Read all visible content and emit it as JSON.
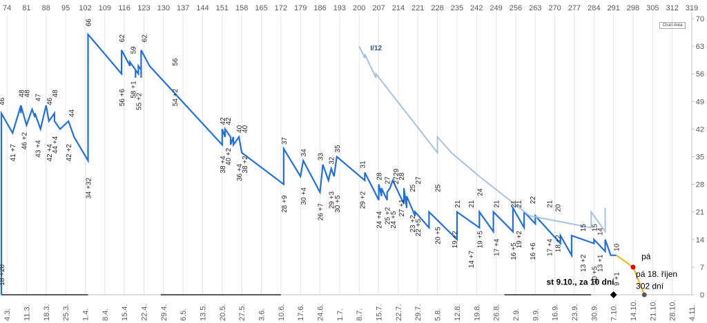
{
  "chart_data": {
    "type": "line",
    "top_axis": {
      "ticks": [
        74,
        81,
        88,
        95,
        102,
        109,
        116,
        123,
        130,
        137,
        144,
        151,
        158,
        165,
        172,
        179,
        186,
        193,
        200,
        207,
        214,
        221,
        228,
        235,
        242,
        249,
        256,
        263,
        270,
        277,
        284,
        291,
        298,
        305,
        312,
        319
      ],
      "range": [
        72,
        319
      ]
    },
    "bottom_axis": {
      "ticks": [
        "4.3.",
        "11.3.",
        "18.3.",
        "25.3.",
        "1.4.",
        "8.4.",
        "15.4.",
        "22.4.",
        "29.4.",
        "6.5.",
        "13.5.",
        "20.5.",
        "27.5.",
        "3.6.",
        "10.6.",
        "17.6.",
        "24.6.",
        "1.7.",
        "8.7.",
        "15.7.",
        "22.7.",
        "29.7.",
        "5.8.",
        "12.8.",
        "19.8.",
        "26.8.",
        "2.9.",
        "9.9.",
        "16.9.",
        "23.9.",
        "30.9.",
        "7.10.",
        "14.10.",
        "21.10.",
        "28.10.",
        "4.11."
      ],
      "range": [
        "2.3.",
        "4.11."
      ]
    },
    "y_axis": {
      "ticks": [
        0,
        7,
        14,
        21,
        28,
        35,
        42,
        49,
        56,
        63,
        70
      ],
      "ylim": [
        0,
        70
      ],
      "position": "right"
    },
    "grid": {
      "vertical": true,
      "horizontal": false
    },
    "series": [
      {
        "color": "#1f6fe0",
        "x": [
          72,
          72,
          72,
          76,
          79,
          79,
          79,
          81,
          83,
          84,
          84,
          86,
          88,
          89,
          91,
          91,
          91,
          93,
          96,
          98,
          103,
          103,
          115,
          115,
          118,
          118,
          120,
          120,
          120,
          121,
          121,
          122,
          122,
          122,
          125,
          125,
          151,
          151,
          152,
          152,
          154,
          154,
          155,
          155,
          157,
          158,
          173,
          173,
          179,
          180,
          186,
          187,
          189,
          190,
          191,
          191,
          192,
          202,
          202,
          207,
          207,
          208,
          208,
          210,
          210,
          211,
          211,
          212,
          216,
          216,
          217,
          217,
          220,
          220,
          225,
          225,
          235,
          235,
          243,
          243,
          248,
          248,
          255,
          255,
          259,
          259,
          263,
          263,
          272,
          272,
          276,
          276,
          284,
          284,
          288,
          288,
          290,
          290,
          292
        ],
        "y": [
          0,
          18,
          46,
          41,
          48,
          46,
          48,
          43,
          47,
          45,
          46,
          42,
          48,
          44,
          46,
          44,
          44,
          42,
          44,
          40,
          34,
          66,
          56,
          62,
          58,
          59,
          57,
          55,
          57,
          56,
          58,
          57,
          55,
          62,
          58,
          58,
          38,
          42,
          40,
          42,
          40,
          38,
          40,
          38,
          40,
          36,
          28,
          37,
          30,
          34,
          26,
          33,
          29,
          32,
          30,
          30,
          35,
          29,
          31,
          24,
          28,
          25,
          27,
          24,
          26,
          27,
          27,
          29,
          23,
          27,
          22,
          25,
          20,
          21,
          17,
          21,
          14,
          21,
          17,
          21,
          16,
          21,
          16,
          22,
          17,
          21,
          18,
          20,
          13,
          15,
          10,
          15,
          13,
          14,
          11,
          14,
          10,
          10,
          10
        ]
      },
      {
        "name": "I/12",
        "color": "#a9c1e0",
        "x": [
          200,
          202,
          202,
          206,
          206,
          228,
          228,
          233,
          233,
          243,
          243,
          261,
          261,
          283,
          283,
          288,
          288
        ],
        "y": [
          63,
          60,
          61,
          55,
          56,
          36,
          40,
          36,
          36,
          30,
          30,
          20,
          20,
          17,
          21,
          16,
          22
        ]
      },
      {
        "color": "#f5b400",
        "x": [
          292,
          298,
          302
        ],
        "y": [
          10,
          7,
          0
        ]
      }
    ],
    "point_labels": [
      {
        "text": "18 +28",
        "x": 72,
        "y": 5,
        "rotate": -90
      },
      {
        "text": "46",
        "x": 72,
        "y": 49,
        "rotate": -90
      },
      {
        "text": "41 +7",
        "x": 76,
        "y": 36,
        "rotate": -90
      },
      {
        "text": "48",
        "x": 79,
        "y": 51,
        "rotate": -90
      },
      {
        "text": "46 +2",
        "x": 80,
        "y": 39,
        "rotate": -90
      },
      {
        "text": "48",
        "x": 81,
        "y": 51,
        "rotate": -90
      },
      {
        "text": "43 +4",
        "x": 85,
        "y": 37,
        "rotate": -90
      },
      {
        "text": "47",
        "x": 85,
        "y": 50,
        "rotate": -90
      },
      {
        "text": "42 +4",
        "x": 89,
        "y": 36,
        "rotate": -90
      },
      {
        "text": "46",
        "x": 89,
        "y": 49,
        "rotate": -90
      },
      {
        "text": "44 +4",
        "x": 91,
        "y": 38,
        "rotate": -90
      },
      {
        "text": "48",
        "x": 91,
        "y": 51,
        "rotate": -90
      },
      {
        "text": "42 +2",
        "x": 96,
        "y": 36,
        "rotate": -90
      },
      {
        "text": "44",
        "x": 97,
        "y": 46,
        "rotate": -90
      },
      {
        "text": "34 +32",
        "x": 103,
        "y": 27,
        "rotate": -90
      },
      {
        "text": "66",
        "x": 103,
        "y": 69,
        "rotate": -90
      },
      {
        "text": "56 +6",
        "x": 115,
        "y": 50,
        "rotate": -90
      },
      {
        "text": "62",
        "x": 115,
        "y": 65,
        "rotate": -90
      },
      {
        "text": "58 +1",
        "x": 119,
        "y": 52,
        "rotate": -90
      },
      {
        "text": "59",
        "x": 119,
        "y": 62,
        "rotate": -90
      },
      {
        "text": "55 +2",
        "x": 121,
        "y": 49,
        "rotate": -90
      },
      {
        "text": "62",
        "x": 123,
        "y": 65,
        "rotate": -90
      },
      {
        "text": "54 +2",
        "x": 134,
        "y": 50,
        "rotate": -90
      },
      {
        "text": "56",
        "x": 134,
        "y": 59,
        "rotate": -90
      },
      {
        "text": "38 +4",
        "x": 151,
        "y": 33,
        "rotate": -90
      },
      {
        "text": "42",
        "x": 151,
        "y": 44,
        "rotate": -90
      },
      {
        "text": "40 +2",
        "x": 153,
        "y": 35,
        "rotate": -90
      },
      {
        "text": "42",
        "x": 153,
        "y": 44,
        "rotate": -90
      },
      {
        "text": "36 +4",
        "x": 157,
        "y": 31,
        "rotate": -90
      },
      {
        "text": "40",
        "x": 157,
        "y": 42,
        "rotate": -90
      },
      {
        "text": "38 +2",
        "x": 159,
        "y": 33,
        "rotate": -90
      },
      {
        "text": "40",
        "x": 159,
        "y": 42,
        "rotate": -90
      },
      {
        "text": "28 +9",
        "x": 173,
        "y": 23,
        "rotate": -90
      },
      {
        "text": "37",
        "x": 173,
        "y": 39,
        "rotate": -90
      },
      {
        "text": "30 +4",
        "x": 180,
        "y": 25,
        "rotate": -90
      },
      {
        "text": "34",
        "x": 180,
        "y": 36,
        "rotate": -90
      },
      {
        "text": "26 +7",
        "x": 186,
        "y": 21,
        "rotate": -90
      },
      {
        "text": "33",
        "x": 186,
        "y": 35,
        "rotate": -90
      },
      {
        "text": "29 +3",
        "x": 190,
        "y": 24,
        "rotate": -90
      },
      {
        "text": "32",
        "x": 190,
        "y": 34,
        "rotate": -90
      },
      {
        "text": "30 +5",
        "x": 192,
        "y": 23,
        "rotate": -90
      },
      {
        "text": "35",
        "x": 192,
        "y": 37,
        "rotate": -90
      },
      {
        "text": "29 +2",
        "x": 201,
        "y": 24,
        "rotate": -90
      },
      {
        "text": "31",
        "x": 201,
        "y": 33,
        "rotate": -90
      },
      {
        "text": "24 +4",
        "x": 207,
        "y": 19,
        "rotate": -90
      },
      {
        "text": "28",
        "x": 207,
        "y": 30,
        "rotate": -90
      },
      {
        "text": "25 +2",
        "x": 210,
        "y": 20,
        "rotate": -90
      },
      {
        "text": "27",
        "x": 210,
        "y": 29,
        "rotate": -90
      },
      {
        "text": "24 +5",
        "x": 212,
        "y": 19,
        "rotate": -90
      },
      {
        "text": "27",
        "x": 213,
        "y": 29,
        "rotate": -90
      },
      {
        "text": "29",
        "x": 213,
        "y": 31,
        "rotate": -90
      },
      {
        "text": "27 +1",
        "x": 215,
        "y": 22,
        "rotate": -90
      },
      {
        "text": "28",
        "x": 215,
        "y": 30,
        "rotate": -90
      },
      {
        "text": "23 +2",
        "x": 219,
        "y": 18,
        "rotate": -90
      },
      {
        "text": "25",
        "x": 219,
        "y": 27,
        "rotate": -90
      },
      {
        "text": "22 +5",
        "x": 221,
        "y": 17,
        "rotate": -90
      },
      {
        "text": "27",
        "x": 221,
        "y": 29,
        "rotate": -90
      },
      {
        "text": "20 +5",
        "x": 228,
        "y": 15,
        "rotate": -90
      },
      {
        "text": "25",
        "x": 228,
        "y": 27,
        "rotate": -90
      },
      {
        "text": "19 +2",
        "x": 234,
        "y": 14,
        "rotate": -90
      },
      {
        "text": "21",
        "x": 235,
        "y": 23,
        "rotate": -90
      },
      {
        "text": "14 +7",
        "x": 240,
        "y": 9,
        "rotate": -90
      },
      {
        "text": "21",
        "x": 240,
        "y": 23,
        "rotate": -90
      },
      {
        "text": "19 +5",
        "x": 243,
        "y": 14,
        "rotate": -90
      },
      {
        "text": "24",
        "x": 243,
        "y": 26,
        "rotate": -90
      },
      {
        "text": "17 +4",
        "x": 249,
        "y": 12,
        "rotate": -90
      },
      {
        "text": "21",
        "x": 249,
        "y": 23,
        "rotate": -90
      },
      {
        "text": "16 +5",
        "x": 255,
        "y": 11,
        "rotate": -90
      },
      {
        "text": "21",
        "x": 255,
        "y": 23,
        "rotate": -90
      },
      {
        "text": "19 +2",
        "x": 257,
        "y": 14,
        "rotate": -90
      },
      {
        "text": "21",
        "x": 257,
        "y": 23,
        "rotate": -90
      },
      {
        "text": "16 +6",
        "x": 262,
        "y": 11,
        "rotate": -90
      },
      {
        "text": "22",
        "x": 262,
        "y": 24,
        "rotate": -90
      },
      {
        "text": "17 +4",
        "x": 268,
        "y": 12,
        "rotate": -90
      },
      {
        "text": "21",
        "x": 268,
        "y": 23,
        "rotate": -90
      },
      {
        "text": "18 +2",
        "x": 271,
        "y": 13,
        "rotate": -90
      },
      {
        "text": "20",
        "x": 271,
        "y": 22,
        "rotate": -90
      },
      {
        "text": "13 +2",
        "x": 280,
        "y": 8,
        "rotate": -90
      },
      {
        "text": "15",
        "x": 280,
        "y": 17,
        "rotate": -90
      },
      {
        "text": "10 +5",
        "x": 284,
        "y": 5,
        "rotate": -90
      },
      {
        "text": "13 +1",
        "x": 286,
        "y": 8,
        "rotate": -90
      },
      {
        "text": "15",
        "x": 284,
        "y": 17,
        "rotate": -90
      },
      {
        "text": "14",
        "x": 286,
        "y": 16,
        "rotate": -90
      },
      {
        "text": "9 +1",
        "x": 292,
        "y": 4,
        "rotate": -90
      },
      {
        "text": "10",
        "x": 292,
        "y": 12,
        "rotate": -90
      }
    ],
    "series_labels": [
      {
        "text": "I/12",
        "x": 204,
        "y": 62
      }
    ],
    "annotations": [
      {
        "text": "st 9.10., za 10 dní",
        "x": 267,
        "y": 2.5,
        "bold": true
      },
      {
        "text": "pá",
        "x": 301,
        "y": 9
      },
      {
        "text": "pá 18. říjen",
        "x": 299,
        "y": 4.5
      },
      {
        "text": "302 dní",
        "x": 299,
        "y": 1.5
      }
    ],
    "markers": [
      {
        "shape": "diamond",
        "x": 291,
        "y": 0,
        "color": "#000000"
      },
      {
        "shape": "circle",
        "x": 298,
        "y": 7,
        "color": "#e00000"
      },
      {
        "shape": "circle",
        "x": 302,
        "y": 0,
        "color": "#595959"
      }
    ]
  },
  "chart_area_button": "Chart Area",
  "colors": {
    "axis": "#bfbfbf",
    "grid": "#e4e4e4",
    "tick_text": "#595959",
    "baseline_segments": "#595959"
  }
}
